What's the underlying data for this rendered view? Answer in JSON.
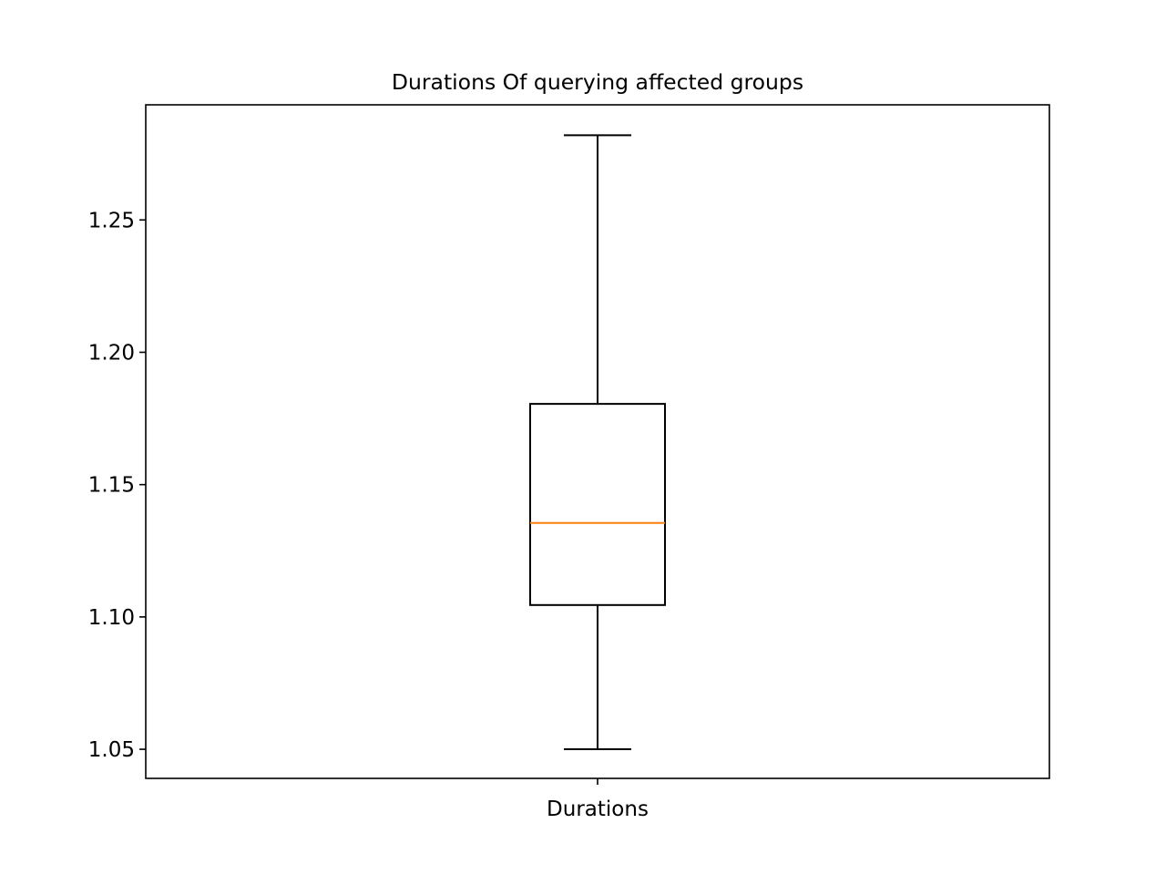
{
  "chart_data": {
    "type": "boxplot",
    "title": "Durations Of querying affected groups",
    "xlabel": "",
    "ylabel": "",
    "categories": [
      "Durations"
    ],
    "boxes": [
      {
        "name": "Durations",
        "whisker_low": 1.05,
        "q1": 1.1045,
        "median": 1.1355,
        "q3": 1.1805,
        "whisker_high": 1.282
      }
    ],
    "yticks": [
      "1.05",
      "1.10",
      "1.15",
      "1.20",
      "1.25"
    ],
    "ylim": [
      1.039,
      1.2935
    ],
    "grid": false,
    "colors": {
      "box": "#000000",
      "median": "#ff7f0e"
    }
  }
}
